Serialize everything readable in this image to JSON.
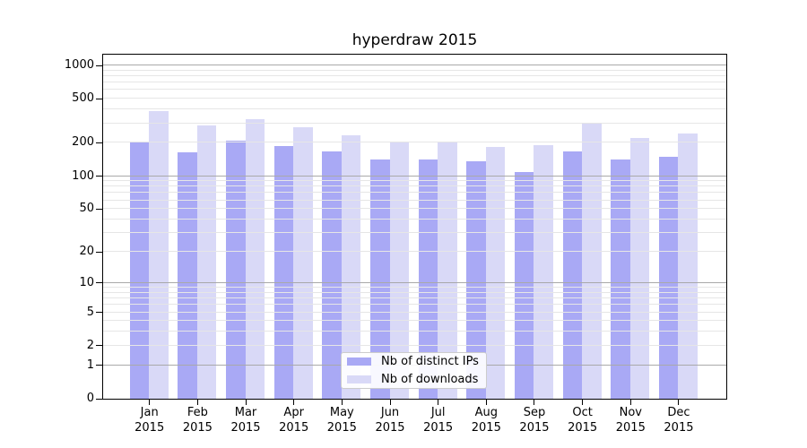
{
  "title": "hyperdraw 2015",
  "legend": {
    "items": [
      {
        "label": "Nb of distinct IPs",
        "color": "#a9a9f5"
      },
      {
        "label": "Nb of downloads",
        "color": "#d9d9f7"
      }
    ],
    "position": "lower center"
  },
  "chart_data": {
    "type": "bar",
    "title": "hyperdraw 2015",
    "categories": [
      "Jan 2015",
      "Feb 2015",
      "Mar 2015",
      "Apr 2015",
      "May 2015",
      "Jun 2015",
      "Jul 2015",
      "Aug 2015",
      "Sep 2015",
      "Oct 2015",
      "Nov 2015",
      "Dec 2015"
    ],
    "x_tick_line1": [
      "Jan",
      "Feb",
      "Mar",
      "Apr",
      "May",
      "Jun",
      "Jul",
      "Aug",
      "Sep",
      "Oct",
      "Nov",
      "Dec"
    ],
    "x_tick_line2": "2015",
    "series": [
      {
        "name": "Nb of distinct IPs",
        "color": "#a9a9f5",
        "values": [
          200,
          162,
          206,
          186,
          167,
          139,
          141,
          135,
          107,
          167,
          139,
          148
        ]
      },
      {
        "name": "Nb of downloads",
        "color": "#d9d9f7",
        "values": [
          382,
          284,
          326,
          273,
          230,
          204,
          205,
          181,
          188,
          298,
          220,
          243
        ]
      }
    ],
    "xlabel": "",
    "ylabel": "",
    "yscale": "log1p",
    "ylim": [
      0,
      1250
    ],
    "yticks": [
      0,
      1,
      2,
      5,
      10,
      20,
      50,
      100,
      200,
      500,
      1000
    ],
    "grid": true,
    "grid_major_values": [
      1,
      10,
      100,
      1000
    ],
    "grid_minor_values": [
      2,
      3,
      4,
      5,
      6,
      7,
      8,
      9,
      20,
      30,
      40,
      50,
      60,
      70,
      80,
      90,
      200,
      300,
      400,
      500,
      600,
      700,
      800,
      900
    ],
    "legend_position": "lower center",
    "colors": {
      "grid_major": "#a9a9a9",
      "grid_minor": "#e6e6e6",
      "spine": "#000000",
      "background": "#ffffff"
    }
  }
}
